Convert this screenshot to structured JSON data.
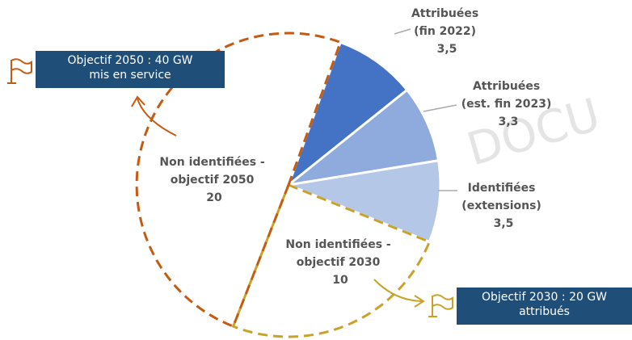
{
  "watermark": "DOCU",
  "chart_data": {
    "type": "pie",
    "unit": "GW",
    "slices": [
      {
        "id": "attr2022",
        "label_lines": [
          "Attribuées",
          "(fin 2022)"
        ],
        "value": 3.5,
        "value_text": "3,5",
        "color": "#4472c4",
        "style": "solid"
      },
      {
        "id": "attr2023",
        "label_lines": [
          "Attribuées",
          "(est. fin 2023)"
        ],
        "value": 3.3,
        "value_text": "3,3",
        "color": "#8faadc",
        "style": "solid"
      },
      {
        "id": "ident",
        "label_lines": [
          "Identifiées",
          "(extensions)"
        ],
        "value": 3.5,
        "value_text": "3,5",
        "color": "#b4c7e7",
        "style": "solid"
      },
      {
        "id": "ni2030",
        "label_lines": [
          "Non identifiées -",
          "objectif 2030"
        ],
        "value": 10,
        "value_text": "10",
        "color": "#c9a227",
        "style": "dashed"
      },
      {
        "id": "ni2050",
        "label_lines": [
          "Non identifiées -",
          "objectif 2050"
        ],
        "value": 20,
        "value_text": "20",
        "color": "#c55a11",
        "style": "dashed"
      }
    ],
    "targets": [
      {
        "id": "t2050",
        "lines": [
          "Objectif 2050 : 40 GW",
          "mis en service"
        ],
        "color": "#c55a11"
      },
      {
        "id": "t2030",
        "lines": [
          "Objectif 2030 : 20 GW",
          "attribués"
        ],
        "color": "#c9a227"
      }
    ]
  }
}
